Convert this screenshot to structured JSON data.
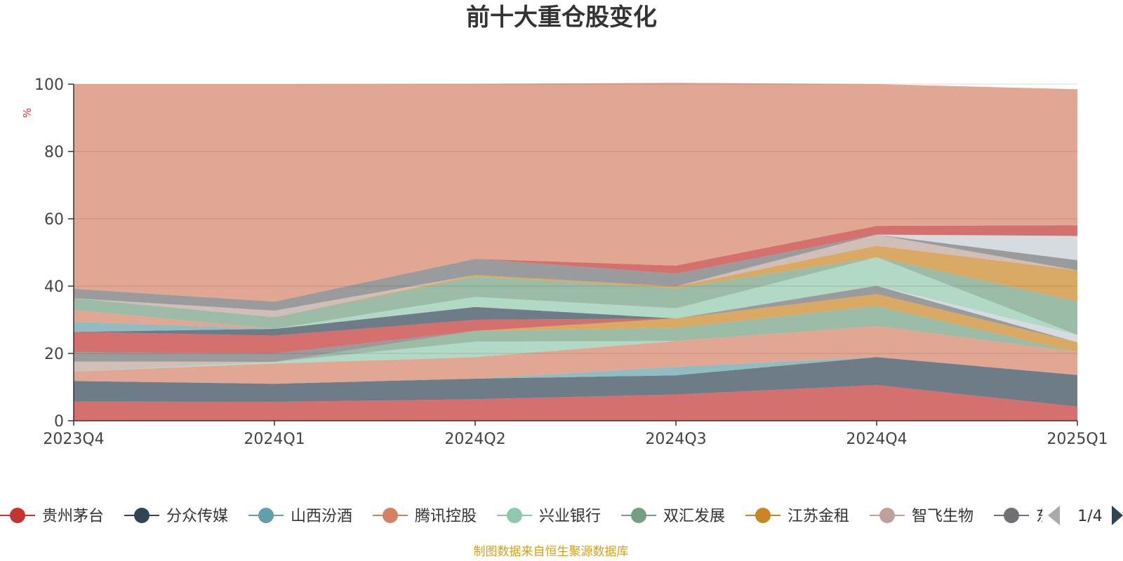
{
  "chart_data": {
    "type": "area",
    "stacked": true,
    "title": "前十大重仓股变化",
    "ylabel": "%",
    "xlabel": "",
    "ylim": [
      0,
      100
    ],
    "y_ticks": [
      0,
      20,
      40,
      60,
      80,
      100
    ],
    "categories": [
      "2023Q4",
      "2024Q1",
      "2024Q2",
      "2024Q3",
      "2024Q4",
      "2025Q1"
    ],
    "grid": true,
    "source": "制图数据来自恒生聚源数据库",
    "legend": {
      "position": "bottom",
      "page_indicator": "1/4",
      "visible_items": [
        "贵州茅台",
        "分众传媒",
        "山西汾酒",
        "腾讯控股",
        "兴业银行",
        "双汇发展",
        "江苏金租",
        "智飞生物",
        "东"
      ]
    },
    "series": [
      {
        "name": "贵州茅台",
        "color": "#c23531",
        "values": [
          5.7,
          5.6,
          6.4,
          7.8,
          10.6,
          4.2
        ]
      },
      {
        "name": "分众传媒",
        "color": "#2f4554",
        "values": [
          6.1,
          5.4,
          6.1,
          5.7,
          8.3,
          9.4
        ]
      },
      {
        "name": "山西汾酒",
        "color": "#61a0a8",
        "values": [
          0.0,
          0.0,
          0.0,
          2.5,
          0.0,
          0.0
        ]
      },
      {
        "name": "腾讯控股",
        "color": "#d48265",
        "values": [
          2.8,
          6.0,
          6.4,
          7.7,
          9.2,
          6.8
        ]
      },
      {
        "name": "兴业银行",
        "color": "#91c7ae",
        "values": [
          0.0,
          0.5,
          4.6,
          0.0,
          0.0,
          0.0
        ]
      },
      {
        "name": "双汇发展",
        "color": "#749f83",
        "values": [
          0.0,
          0.0,
          3.2,
          3.9,
          6.0,
          0.0
        ]
      },
      {
        "name": "江苏金租",
        "color": "#ca8622",
        "values": [
          0.0,
          0.0,
          0.0,
          2.8,
          3.5,
          2.9
        ]
      },
      {
        "name": "智飞生物",
        "color": "#bda29a",
        "values": [
          3.0,
          0.0,
          0.0,
          0.0,
          0.0,
          0.0
        ]
      },
      {
        "name": "东",
        "color": "#6e7074",
        "values": [
          2.8,
          2.5,
          0.0,
          0.0,
          2.5,
          0.0
        ]
      },
      {
        "name": "",
        "color": "#c4ccd3",
        "values": [
          0.0,
          0.0,
          0.0,
          0.0,
          0.0,
          2.2
        ]
      },
      {
        "name": "",
        "color": "#c23531",
        "values": [
          6.0,
          5.3,
          3.3,
          0.0,
          0.0,
          0.0
        ]
      },
      {
        "name": "",
        "color": "#2f4554",
        "values": [
          0.0,
          2.0,
          3.8,
          0.0,
          0.0,
          0.0
        ]
      },
      {
        "name": "",
        "color": "#61a0a8",
        "values": [
          3.0,
          0.0,
          0.0,
          0.0,
          0.0,
          0.0
        ]
      },
      {
        "name": "",
        "color": "#d48265",
        "values": [
          3.5,
          0.0,
          0.0,
          0.0,
          0.0,
          0.0
        ]
      },
      {
        "name": "",
        "color": "#91c7ae",
        "values": [
          0.0,
          0.0,
          3.0,
          3.0,
          8.5,
          0.0
        ]
      },
      {
        "name": "",
        "color": "#749f83",
        "values": [
          3.5,
          3.5,
          6.0,
          6.0,
          0.0,
          10.0
        ]
      },
      {
        "name": "",
        "color": "#ca8622",
        "values": [
          0.0,
          0.0,
          0.5,
          0.5,
          3.4,
          9.2
        ]
      },
      {
        "name": "",
        "color": "#bda29a",
        "values": [
          0.0,
          1.9,
          0.0,
          0.0,
          3.3,
          0.0
        ]
      },
      {
        "name": "",
        "color": "#6e7074",
        "values": [
          2.8,
          2.7,
          4.8,
          3.8,
          0.0,
          3.0
        ]
      },
      {
        "name": "",
        "color": "#c4ccd3",
        "values": [
          0.0,
          0.0,
          0.0,
          0.0,
          0.0,
          7.2
        ]
      },
      {
        "name": "",
        "color": "#c23531",
        "values": [
          0.0,
          0.0,
          0.0,
          2.4,
          2.6,
          3.2
        ]
      },
      {
        "name": "",
        "color": "#d48265",
        "values": [
          60.8,
          64.6,
          52.0,
          54.3,
          42.1,
          40.4
        ]
      }
    ]
  }
}
